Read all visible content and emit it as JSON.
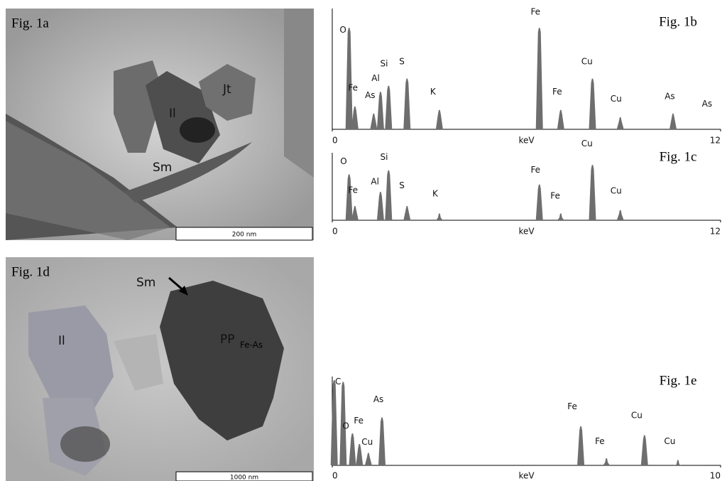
{
  "figures": [
    {
      "label": "Fig. 1a",
      "annotations": [
        "Sm",
        "Il",
        "Jt"
      ],
      "scale_bar": "200 nm"
    },
    {
      "label": "Fig. 1d",
      "annotations": [
        "Sm",
        "Il",
        "PP",
        "Fe-As"
      ],
      "scale_bar": "1000 nm"
    }
  ],
  "chart_data": [
    {
      "type": "spectrum",
      "title": "Fig. 1b",
      "xlabel": "keV",
      "xlim": [
        0,
        12
      ],
      "xticks": [
        0,
        12
      ],
      "ylim": [
        0,
        100
      ],
      "color": "#6e6e6e",
      "x": [
        0.52,
        0.7,
        1.28,
        1.49,
        1.74,
        2.31,
        3.31,
        6.4,
        7.06,
        8.04,
        8.9,
        10.53
      ],
      "values": [
        84,
        19,
        13,
        31,
        36,
        42,
        16,
        84,
        16,
        42,
        10,
        13
      ],
      "peak_labels": [
        {
          "text": "O",
          "x": 0.33,
          "y": 82
        },
        {
          "text": "Fe",
          "x": 0.64,
          "y": 34
        },
        {
          "text": "As",
          "x": 1.17,
          "y": 28
        },
        {
          "text": "Al",
          "x": 1.34,
          "y": 42
        },
        {
          "text": "Si",
          "x": 1.6,
          "y": 54
        },
        {
          "text": "S",
          "x": 2.15,
          "y": 56
        },
        {
          "text": "K",
          "x": 3.11,
          "y": 31
        },
        {
          "text": "Fe",
          "x": 6.28,
          "y": 97
        },
        {
          "text": "Fe",
          "x": 6.95,
          "y": 31
        },
        {
          "text": "Cu",
          "x": 7.87,
          "y": 56
        },
        {
          "text": "Cu",
          "x": 8.77,
          "y": 25
        },
        {
          "text": "As",
          "x": 10.43,
          "y": 27
        },
        {
          "text": "As",
          "x": 11.58,
          "y": 21
        }
      ]
    },
    {
      "type": "spectrum",
      "title": "Fig. 1c",
      "xlabel": "keV",
      "xlim": [
        0,
        12
      ],
      "xticks": [
        0,
        12
      ],
      "ylim": [
        0,
        100
      ],
      "color": "#6e6e6e",
      "x": [
        0.52,
        0.7,
        1.49,
        1.74,
        2.31,
        3.31,
        6.4,
        7.06,
        8.04,
        8.9
      ],
      "values": [
        68,
        21,
        42,
        74,
        21,
        10,
        53,
        10,
        82,
        15
      ],
      "peak_labels": [
        {
          "text": "O",
          "x": 0.35,
          "y": 87
        },
        {
          "text": "Fe",
          "x": 0.64,
          "y": 44
        },
        {
          "text": "Al",
          "x": 1.32,
          "y": 57
        },
        {
          "text": "Si",
          "x": 1.6,
          "y": 93
        },
        {
          "text": "S",
          "x": 2.15,
          "y": 51
        },
        {
          "text": "K",
          "x": 3.18,
          "y": 39
        },
        {
          "text": "Fe",
          "x": 6.28,
          "y": 74
        },
        {
          "text": "Fe",
          "x": 6.89,
          "y": 36
        },
        {
          "text": "Cu",
          "x": 7.87,
          "y": 113
        },
        {
          "text": "Cu",
          "x": 8.77,
          "y": 43
        }
      ]
    },
    {
      "type": "spectrum",
      "title": "Fig. 1e",
      "xlabel": "keV",
      "xlim": [
        0,
        10
      ],
      "xticks": [
        0,
        10
      ],
      "ylim": [
        0,
        100
      ],
      "color": "#6e6e6e",
      "x": [
        0.05,
        0.28,
        0.52,
        0.7,
        0.93,
        1.28,
        6.4,
        7.06,
        8.04,
        8.9
      ],
      "values": [
        96,
        94,
        36,
        24,
        14,
        54,
        44,
        8,
        34,
        6
      ],
      "peak_labels": [
        {
          "text": "C",
          "x": 0.15,
          "y": 94
        },
        {
          "text": "O",
          "x": 0.35,
          "y": 44
        },
        {
          "text": "Fe",
          "x": 0.68,
          "y": 50
        },
        {
          "text": "Cu",
          "x": 0.9,
          "y": 26
        },
        {
          "text": "As",
          "x": 1.19,
          "y": 74
        },
        {
          "text": "Fe",
          "x": 6.18,
          "y": 66
        },
        {
          "text": "Fe",
          "x": 6.89,
          "y": 27
        },
        {
          "text": "Cu",
          "x": 7.84,
          "y": 56
        },
        {
          "text": "Cu",
          "x": 8.69,
          "y": 27
        }
      ]
    }
  ]
}
